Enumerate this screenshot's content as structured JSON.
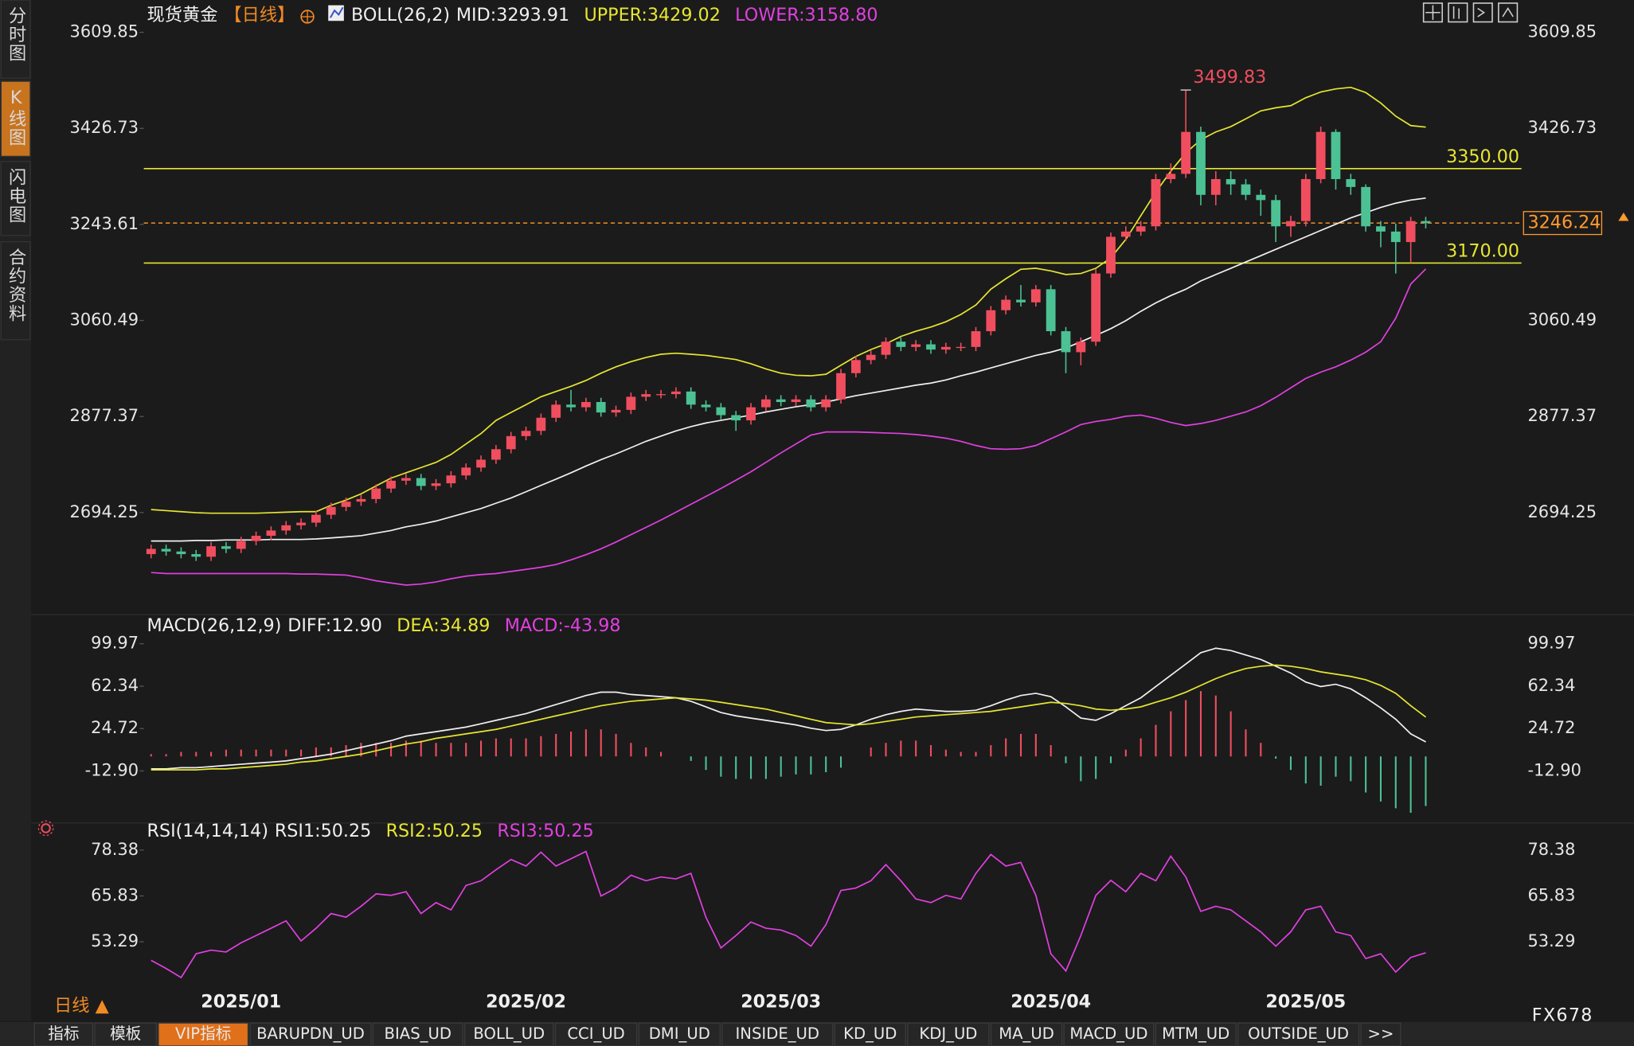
{
  "sidebar": {
    "tabs": [
      "分时图",
      "K线图",
      "闪电图",
      "合约资料"
    ]
  },
  "chart_data": [
    {
      "type": "candlestick",
      "title": "现货黄金",
      "period": "【日线】",
      "indicator": "BOLL(26,2)",
      "legend": [
        {
          "label": "MID:3293.91",
          "color": "#f0f0f0"
        },
        {
          "label": "UPPER:3429.02",
          "color": "#e6e632"
        },
        {
          "label": "LOWER:3158.80",
          "color": "#e040e0"
        }
      ],
      "categories": [
        null,
        null,
        null,
        null,
        null,
        null,
        "2025/01",
        null,
        null,
        null,
        null,
        null,
        null,
        null,
        null,
        null,
        null,
        null,
        null,
        null,
        null,
        null,
        null,
        null,
        null,
        "2025/02",
        null,
        null,
        null,
        null,
        null,
        null,
        null,
        null,
        null,
        null,
        null,
        null,
        null,
        null,
        null,
        null,
        "2025/03",
        null,
        null,
        null,
        null,
        null,
        null,
        null,
        null,
        null,
        null,
        null,
        null,
        null,
        null,
        null,
        null,
        null,
        "2025/04",
        null,
        null,
        null,
        null,
        null,
        null,
        null,
        null,
        null,
        null,
        null,
        null,
        null,
        null,
        null,
        null,
        "2025/05",
        null,
        null,
        null,
        null,
        null,
        null,
        null,
        null
      ],
      "open": [
        2615,
        2625,
        2620,
        2615,
        2610,
        2630,
        2625,
        2640,
        2650,
        2660,
        2670,
        2675,
        2690,
        2705,
        2715,
        2720,
        2740,
        2755,
        2760,
        2745,
        2750,
        2765,
        2780,
        2795,
        2815,
        2840,
        2850,
        2875,
        2900,
        2895,
        2905,
        2885,
        2890,
        2915,
        2920,
        2920,
        2925,
        2900,
        2895,
        2880,
        2870,
        2895,
        2910,
        2905,
        2910,
        2895,
        2910,
        2960,
        2985,
        2995,
        3020,
        3010,
        3015,
        3005,
        3010,
        3010,
        3040,
        3080,
        3100,
        3095,
        3120,
        3040,
        3000,
        3020,
        3150,
        3220,
        3230,
        3240,
        3330,
        3340,
        3420,
        3300,
        3330,
        3320,
        3300,
        3290,
        3240,
        3250,
        3330,
        3420,
        3330,
        3315,
        3240,
        3230,
        3210,
        3250
      ],
      "high": [
        2633,
        2633,
        2628,
        2623,
        2638,
        2638,
        2648,
        2658,
        2668,
        2678,
        2683,
        2698,
        2713,
        2723,
        2728,
        2748,
        2763,
        2768,
        2768,
        2758,
        2773,
        2788,
        2803,
        2823,
        2848,
        2858,
        2883,
        2908,
        2928,
        2913,
        2913,
        2898,
        2923,
        2928,
        2928,
        2933,
        2933,
        2908,
        2903,
        2888,
        2903,
        2918,
        2918,
        2918,
        2918,
        2918,
        2968,
        2993,
        3003,
        3028,
        3028,
        3023,
        3023,
        3018,
        3018,
        3048,
        3088,
        3108,
        3128,
        3128,
        3128,
        3048,
        3028,
        3158,
        3228,
        3240,
        3250,
        3340,
        3360,
        3499.83,
        3430,
        3345,
        3345,
        3330,
        3310,
        3300,
        3260,
        3340,
        3430,
        3425,
        3340,
        3320,
        3250,
        3245,
        3258,
        3258
      ],
      "low": [
        2607,
        2612,
        2607,
        2602,
        2602,
        2617,
        2617,
        2632,
        2642,
        2652,
        2662,
        2667,
        2682,
        2697,
        2707,
        2712,
        2732,
        2747,
        2737,
        2737,
        2742,
        2757,
        2772,
        2787,
        2807,
        2832,
        2842,
        2867,
        2887,
        2887,
        2877,
        2877,
        2882,
        2907,
        2912,
        2912,
        2892,
        2887,
        2872,
        2850,
        2862,
        2887,
        2897,
        2897,
        2887,
        2887,
        2902,
        2952,
        2977,
        2987,
        3002,
        3002,
        2997,
        2997,
        3002,
        3002,
        3032,
        3072,
        3087,
        3087,
        3032,
        2960,
        2975,
        3012,
        3142,
        3212,
        3222,
        3232,
        3322,
        3332,
        3280,
        3280,
        3300,
        3290,
        3260,
        3210,
        3220,
        3240,
        3322,
        3310,
        3300,
        3230,
        3200,
        3150,
        3170,
        3236
      ],
      "close": [
        2625,
        2620,
        2615,
        2610,
        2630,
        2625,
        2640,
        2650,
        2660,
        2670,
        2675,
        2690,
        2705,
        2715,
        2720,
        2740,
        2755,
        2760,
        2745,
        2750,
        2765,
        2780,
        2795,
        2815,
        2840,
        2850,
        2875,
        2900,
        2895,
        2905,
        2885,
        2890,
        2915,
        2920,
        2920,
        2925,
        2900,
        2895,
        2880,
        2870,
        2895,
        2910,
        2905,
        2910,
        2895,
        2910,
        2960,
        2985,
        2995,
        3020,
        3010,
        3015,
        3005,
        3010,
        3010,
        3040,
        3080,
        3100,
        3095,
        3120,
        3040,
        3000,
        3020,
        3150,
        3220,
        3230,
        3240,
        3330,
        3340,
        3420,
        3300,
        3330,
        3320,
        3300,
        3290,
        3240,
        3250,
        3330,
        3420,
        3330,
        3315,
        3240,
        3230,
        3210,
        3250,
        3246.24
      ],
      "up_color": "#f04e5e",
      "down_color": "#4cc194",
      "series": [
        {
          "color": "#f0f0f0",
          "values": [
            2640,
            2640,
            2640,
            2641,
            2641,
            2642,
            2642,
            2642,
            2643,
            2643,
            2643,
            2644,
            2646,
            2648,
            2650,
            2655,
            2660,
            2667,
            2672,
            2678,
            2686,
            2694,
            2702,
            2712,
            2722,
            2734,
            2746,
            2758,
            2770,
            2783,
            2795,
            2806,
            2818,
            2830,
            2840,
            2850,
            2858,
            2865,
            2870,
            2875,
            2880,
            2886,
            2891,
            2896,
            2900,
            2905,
            2911,
            2917,
            2922,
            2927,
            2932,
            2937,
            2941,
            2947,
            2955,
            2962,
            2970,
            2978,
            2986,
            2994,
            3000,
            3008,
            3020,
            3032,
            3045,
            3060,
            3078,
            3094,
            3108,
            3120,
            3136,
            3148,
            3160,
            3172,
            3184,
            3196,
            3208,
            3220,
            3232,
            3244,
            3256,
            3266,
            3276,
            3284,
            3290,
            3293.91
          ]
        },
        {
          "color": "#e6e632",
          "values": [
            2700,
            2698,
            2696,
            2694,
            2693,
            2693,
            2693,
            2693,
            2694,
            2695,
            2696,
            2696,
            2708,
            2718,
            2730,
            2745,
            2760,
            2770,
            2780,
            2790,
            2805,
            2825,
            2845,
            2870,
            2885,
            2900,
            2915,
            2925,
            2935,
            2946,
            2960,
            2972,
            2982,
            2990,
            2996,
            2998,
            2996,
            2994,
            2990,
            2986,
            2978,
            2968,
            2960,
            2956,
            2955,
            2958,
            2975,
            2992,
            3005,
            3016,
            3030,
            3040,
            3048,
            3058,
            3072,
            3090,
            3120,
            3140,
            3158,
            3160,
            3155,
            3148,
            3150,
            3160,
            3180,
            3215,
            3260,
            3305,
            3345,
            3380,
            3405,
            3420,
            3430,
            3445,
            3460,
            3466,
            3470,
            3485,
            3496,
            3502,
            3505,
            3495,
            3475,
            3450,
            3432,
            3429.02
          ]
        },
        {
          "color": "#e040e0",
          "values": [
            2580,
            2578,
            2578,
            2578,
            2578,
            2578,
            2578,
            2578,
            2578,
            2578,
            2577,
            2577,
            2576,
            2575,
            2570,
            2564,
            2560,
            2556,
            2558,
            2562,
            2568,
            2573,
            2576,
            2578,
            2582,
            2586,
            2590,
            2595,
            2604,
            2614,
            2625,
            2638,
            2652,
            2666,
            2680,
            2695,
            2710,
            2725,
            2740,
            2756,
            2772,
            2790,
            2808,
            2825,
            2842,
            2848,
            2848,
            2848,
            2847,
            2846,
            2845,
            2843,
            2840,
            2836,
            2830,
            2822,
            2816,
            2815,
            2816,
            2822,
            2835,
            2848,
            2862,
            2868,
            2872,
            2878,
            2880,
            2874,
            2866,
            2860,
            2864,
            2870,
            2878,
            2886,
            2898,
            2914,
            2932,
            2950,
            2962,
            2972,
            2985,
            3000,
            3020,
            3065,
            3130,
            3158.8
          ]
        }
      ],
      "reference_lines": [
        {
          "value": 3350,
          "label": "3350.00",
          "color": "#e6e632"
        },
        {
          "value": 3170,
          "label": "3170.00",
          "color": "#e6e632"
        }
      ],
      "last_price_color": "#ff9a2e",
      "peak_color": "#f04e5e",
      "ylim": [
        2519.4,
        3627.7
      ],
      "yticks": [
        3609.85,
        3426.73,
        3243.61,
        3060.49,
        2877.37,
        2694.25
      ]
    },
    {
      "type": "macd",
      "indicator": "MACD(26,12,9)",
      "legend": [
        {
          "label": "DIFF:12.90",
          "color": "#f0f0f0"
        },
        {
          "label": "DEA:34.89",
          "color": "#e6e632"
        },
        {
          "label": "MACD:-43.98",
          "color": "#e040e0"
        }
      ],
      "series": [
        {
          "color": "#f0f0f0",
          "values": [
            -11,
            -11,
            -10,
            -10,
            -9,
            -8,
            -7,
            -6,
            -5,
            -4,
            -2,
            0,
            2,
            5,
            8,
            11,
            14,
            18,
            20,
            22,
            24,
            26,
            29,
            32,
            35,
            38,
            42,
            46,
            50,
            54,
            57,
            57,
            55,
            54,
            53,
            52,
            49,
            44,
            39,
            36,
            34,
            32,
            30,
            28,
            25,
            23,
            24,
            28,
            33,
            37,
            40,
            42,
            41,
            40,
            40,
            41,
            45,
            50,
            54,
            56,
            53,
            44,
            34,
            32,
            38,
            45,
            52,
            62,
            72,
            82,
            92,
            96,
            94,
            90,
            86,
            80,
            74,
            66,
            62,
            64,
            60,
            52,
            43,
            33,
            20,
            12.9
          ]
        },
        {
          "color": "#e6e632",
          "values": [
            -12,
            -12,
            -12,
            -12,
            -11,
            -11,
            -10,
            -9,
            -8,
            -7,
            -5,
            -4,
            -2,
            0,
            2,
            5,
            8,
            11,
            13,
            16,
            18,
            20,
            22,
            24,
            27,
            30,
            33,
            36,
            39,
            42,
            45,
            47,
            49,
            50,
            51,
            52,
            51,
            50,
            48,
            46,
            44,
            42,
            39,
            36,
            33,
            30,
            29,
            28,
            29,
            31,
            33,
            35,
            36,
            37,
            38,
            39,
            40,
            42,
            44,
            46,
            48,
            47,
            45,
            42,
            41,
            42,
            44,
            48,
            52,
            57,
            63,
            69,
            74,
            78,
            80,
            81,
            80,
            78,
            75,
            73,
            71,
            68,
            63,
            56,
            45,
            34.89
          ]
        }
      ],
      "histogram": {
        "up_color": "#f04e5e",
        "down_color": "#4cc194",
        "values": [
          2,
          2,
          4,
          4,
          4,
          6,
          6,
          6,
          6,
          6,
          6,
          8,
          8,
          10,
          12,
          12,
          12,
          14,
          14,
          12,
          12,
          12,
          14,
          16,
          16,
          16,
          18,
          20,
          22,
          24,
          24,
          20,
          12,
          8,
          4,
          0,
          -4,
          -12,
          -18,
          -20,
          -20,
          -20,
          -18,
          -16,
          -16,
          -14,
          -10,
          0,
          8,
          12,
          14,
          14,
          10,
          6,
          4,
          4,
          10,
          16,
          20,
          20,
          10,
          -6,
          -22,
          -20,
          -6,
          6,
          16,
          28,
          40,
          50,
          58,
          54,
          40,
          24,
          12,
          -2,
          -12,
          -24,
          -26,
          -18,
          -22,
          -32,
          -40,
          -46,
          -50,
          -43.98
        ]
      },
      "ylim": [
        -54.5,
        111
      ],
      "yticks": [
        99.97,
        62.34,
        24.72,
        {
          "value": -12.9,
          "label": "-12.90"
        }
      ]
    },
    {
      "type": "line",
      "indicator": "RSI(14,14,14)",
      "legend": [
        {
          "label": "RSI1:50.25",
          "color": "#f0f0f0"
        },
        {
          "label": "RSI2:50.25",
          "color": "#e6e632"
        },
        {
          "label": "RSI3:50.25",
          "color": "#e040e0"
        }
      ],
      "series": [
        {
          "color": "#e040e0",
          "values": [
            48.2,
            46,
            43.5,
            50,
            51,
            50.5,
            53,
            55,
            57,
            59,
            53.5,
            57,
            61,
            60,
            63,
            66.4,
            66,
            67,
            61,
            64,
            62,
            68.7,
            70,
            73,
            75.8,
            74,
            77.8,
            74,
            76,
            78,
            65.8,
            68,
            71.5,
            70,
            71,
            70.5,
            72,
            60,
            51.6,
            55,
            58.7,
            57,
            56.5,
            55,
            52.1,
            58,
            67.3,
            68,
            70,
            74.4,
            70,
            65,
            64,
            66,
            65,
            72,
            77.2,
            74,
            75,
            66,
            50,
            45.3,
            55,
            66,
            70.1,
            67,
            72,
            70,
            76.7,
            71,
            61.6,
            63,
            62,
            59,
            56,
            52.1,
            56,
            62,
            63,
            56,
            55,
            48.7,
            50,
            45,
            49,
            50.25
          ]
        }
      ],
      "ylim": [
        41.6,
        81.5
      ],
      "yticks": [
        78.38,
        65.83,
        53.29
      ]
    }
  ],
  "footer": {
    "period": "日线 ▲",
    "tabs": [
      "指标",
      "模板",
      "VIP指标",
      "BARUPDN_UD",
      "BIAS_UD",
      "BOLL_UD",
      "CCI_UD",
      "DMI_UD",
      "INSIDE_UD",
      "KD_UD",
      "KDJ_UD",
      "MA_UD",
      "MACD_UD",
      "MTM_UD",
      "OUTSIDE_UD",
      ">>"
    ],
    "active": 2,
    "brand": "FX678"
  }
}
